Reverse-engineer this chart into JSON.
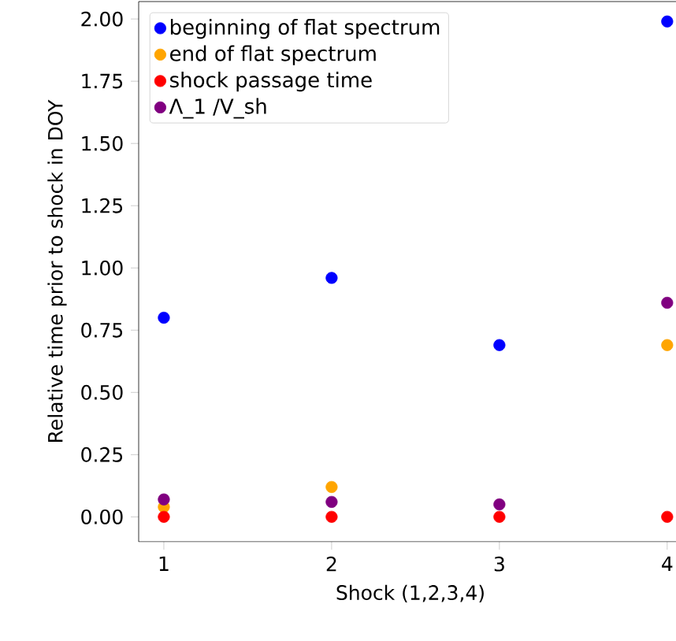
{
  "chart_data": {
    "type": "scatter",
    "xlabel": "Shock (1,2,3,4)",
    "ylabel": "Relative time prior to shock in DOY",
    "x": [
      1,
      2,
      3,
      4
    ],
    "series": [
      {
        "name": "beginning of flat spectrum",
        "color": "#0000ff",
        "values": [
          0.8,
          0.96,
          0.69,
          1.99
        ]
      },
      {
        "name": "end of flat spectrum",
        "color": "#ffa500",
        "values": [
          0.04,
          0.12,
          null,
          0.69
        ]
      },
      {
        "name": "shock passage time",
        "color": "#ff0000",
        "values": [
          0,
          0,
          0,
          0
        ]
      },
      {
        "name": "Λ_1 /V_sh",
        "color": "#800080",
        "values": [
          0.07,
          0.06,
          0.05,
          0.86
        ]
      }
    ],
    "xlim": [
      0.85,
      4.09
    ],
    "ylim": [
      -0.1,
      2.07
    ],
    "xticks": [
      1,
      2,
      3,
      4
    ],
    "yticks": [
      {
        "value": 0,
        "label": "0.00"
      },
      {
        "value": 0.25,
        "label": "0.25"
      },
      {
        "value": 0.5,
        "label": "0.50"
      },
      {
        "value": 0.75,
        "label": "0.75"
      },
      {
        "value": 1,
        "label": "1.00"
      },
      {
        "value": 1.25,
        "label": "1.25"
      },
      {
        "value": 1.5,
        "label": "1.50"
      },
      {
        "value": 1.75,
        "label": "1.75"
      },
      {
        "value": 2,
        "label": "2.00"
      }
    ],
    "marker": "circle",
    "legend": "top left",
    "grid": false
  }
}
